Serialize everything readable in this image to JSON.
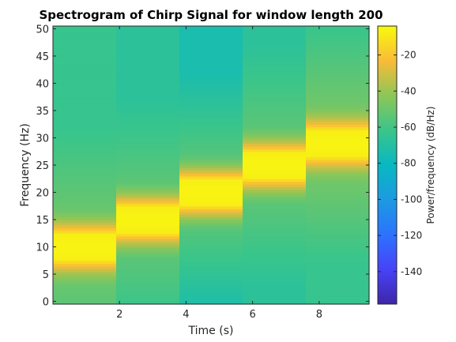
{
  "chart_data": {
    "type": "heatmap",
    "title": "Spectrogram of Chirp Signal for window length 200",
    "xlabel": "Time (s)",
    "ylabel": "Frequency (Hz)",
    "xlim": [
      0,
      9.5
    ],
    "ylim": [
      -0.5,
      50.5
    ],
    "x_ticks": [
      2,
      4,
      6,
      8
    ],
    "x_tick_labels": [
      "2",
      "4",
      "6",
      "8"
    ],
    "y_ticks": [
      0,
      5,
      10,
      15,
      20,
      25,
      30,
      35,
      40,
      45,
      50
    ],
    "y_tick_labels": [
      "0",
      "5",
      "10",
      "15",
      "20",
      "25",
      "30",
      "35",
      "40",
      "45",
      "50"
    ],
    "colorbar": {
      "label": "Power/frequency (dB/Hz)",
      "range": [
        -158,
        -4
      ],
      "ticks": [
        -140,
        -120,
        -100,
        -80,
        -60,
        -40,
        -20
      ],
      "tick_labels": [
        "-140",
        "-120",
        "-100",
        "-80",
        "-60",
        "-40",
        "-20"
      ],
      "colormap": "parula"
    },
    "frequency_resolution_hz": 0.5,
    "time_segments": [
      {
        "t_start": 0.0,
        "t_end": 1.9,
        "peak_freq": 10,
        "background_db": -63,
        "near_db": -52
      },
      {
        "t_start": 1.9,
        "t_end": 3.8,
        "peak_freq": 15,
        "background_db": -67,
        "near_db": -55
      },
      {
        "t_start": 3.8,
        "t_end": 5.7,
        "peak_freq": 20,
        "background_db": -74,
        "near_db": -57
      },
      {
        "t_start": 5.7,
        "t_end": 7.6,
        "peak_freq": 25,
        "background_db": -67,
        "near_db": -55
      },
      {
        "t_start": 7.6,
        "t_end": 9.5,
        "peak_freq": 29,
        "background_db": -63,
        "near_db": -50
      }
    ],
    "peak_db": -6,
    "peak_halfwidth_hz": 2.4,
    "falloff_halfwidth_hz": 8
  }
}
